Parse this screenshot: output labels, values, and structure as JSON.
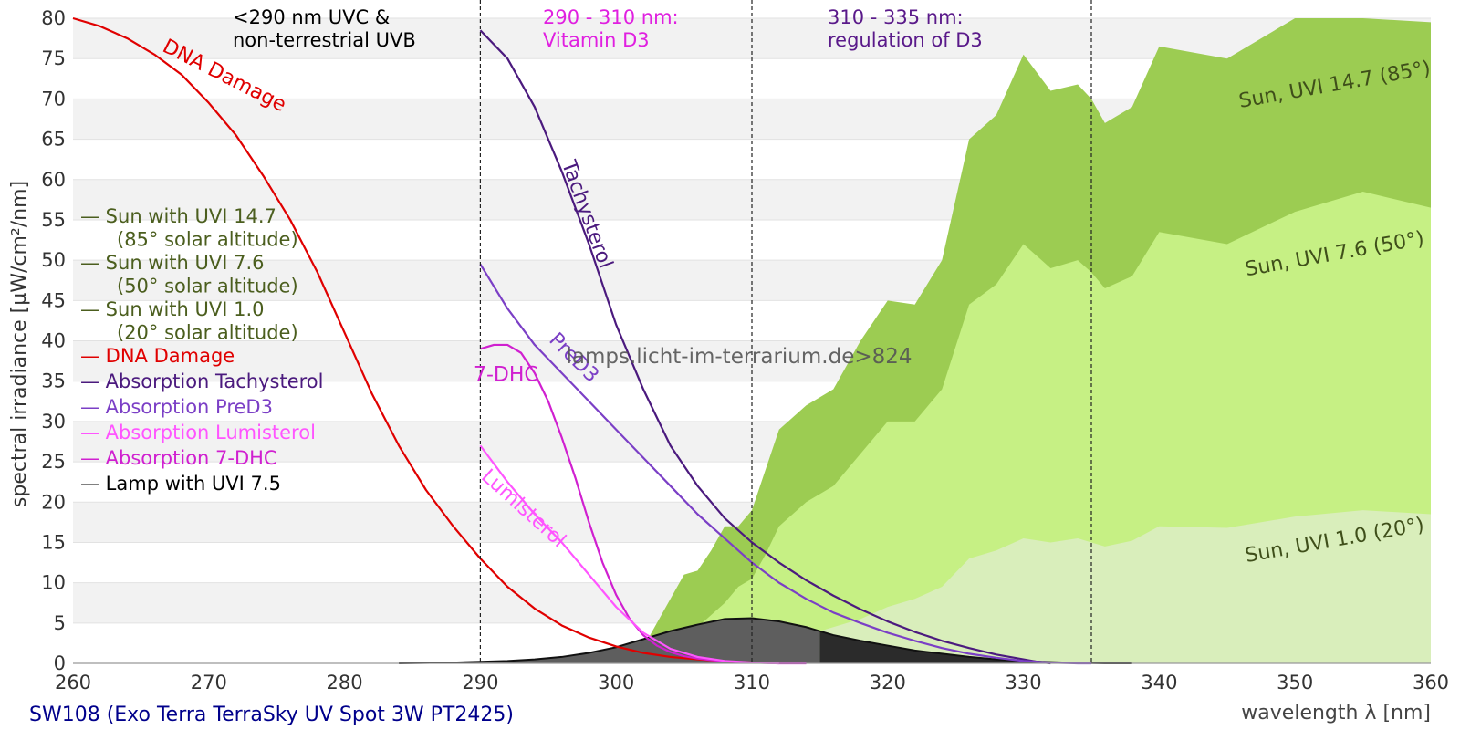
{
  "chart_data": {
    "type": "area",
    "xlabel": "wavelength λ [nm]",
    "ylabel": "spectral irradiance [µW/cm²/nm]",
    "xlim": [
      260,
      360
    ],
    "ylim": [
      0,
      80
    ],
    "xticks": [
      260,
      270,
      280,
      290,
      300,
      310,
      320,
      330,
      340,
      350,
      360
    ],
    "yticks": [
      0,
      5,
      10,
      15,
      20,
      25,
      30,
      35,
      40,
      45,
      50,
      55,
      60,
      65,
      70,
      75,
      80
    ],
    "grid": "horizontal bands",
    "footer": "SW108 (Exo Terra TerraSky UV Spot 3W PT2425)",
    "watermark": "lamps.licht-im-terrarium.de>824",
    "region_lines": [
      290,
      310,
      335
    ],
    "region_labels": [
      {
        "lines": [
          "<290 nm UVC &",
          "non-terrestrial UVB"
        ],
        "color": "#000000"
      },
      {
        "lines": [
          "290 - 310 nm:",
          "Vitamin D3"
        ],
        "color": "#e020e0"
      },
      {
        "lines": [
          "310 - 335 nm:",
          "regulation of D3"
        ],
        "color": "#5a1a8a"
      }
    ],
    "legend": [
      {
        "lines": [
          "— Sun with UVI 14.7",
          "(85° solar altitude)"
        ],
        "color": "#4b5e1e"
      },
      {
        "lines": [
          "— Sun with UVI 7.6",
          "(50° solar altitude)"
        ],
        "color": "#4b5e1e"
      },
      {
        "lines": [
          "— Sun with UVI 1.0",
          "(20° solar altitude)"
        ],
        "color": "#4b5e1e"
      },
      {
        "lines": [
          "— DNA Damage"
        ],
        "color": "#e00000"
      },
      {
        "lines": [
          "— Absorption Tachysterol"
        ],
        "color": "#4b1a7e"
      },
      {
        "lines": [
          "— Absorption PreD3"
        ],
        "color": "#7b3fc6"
      },
      {
        "lines": [
          "— Absorption Lumisterol"
        ],
        "color": "#ff55ff"
      },
      {
        "lines": [
          "— Absorption 7-DHC"
        ],
        "color": "#d020d0"
      },
      {
        "lines": [
          "— Lamp with UVI 7.5"
        ],
        "color": "#000000"
      }
    ],
    "sun_areas": [
      {
        "name": "Sun, UVI 14.7 (85°)",
        "color": "#9ccc52",
        "text_color": "#3f4f1a",
        "label_x": 353,
        "label_y": 71,
        "x": [
          302,
          303,
          304,
          305,
          306,
          307,
          308,
          309,
          310,
          311,
          312,
          314,
          316,
          318,
          320,
          322,
          324,
          326,
          328,
          330,
          332,
          334,
          335,
          336,
          338,
          340,
          345,
          350,
          355,
          360
        ],
        "y": [
          2,
          5,
          8,
          11,
          11.5,
          14,
          17,
          17,
          19,
          24,
          29,
          32,
          34,
          40,
          45,
          44.5,
          50,
          65,
          68,
          75.5,
          71,
          71.8,
          70,
          67,
          69,
          76.5,
          75,
          80,
          83,
          79.5
        ]
      },
      {
        "name": "Sun, UVI 7.6 (50°)",
        "color": "#c6f084",
        "text_color": "#3f4f1a",
        "label_x": 353,
        "label_y": 50,
        "x": [
          302,
          303,
          304,
          305,
          306,
          307,
          308,
          309,
          310,
          311,
          312,
          314,
          316,
          318,
          320,
          322,
          324,
          326,
          328,
          330,
          332,
          334,
          335,
          336,
          338,
          340,
          345,
          350,
          355,
          360
        ],
        "y": [
          0.5,
          1.5,
          3,
          4,
          4.5,
          6,
          7.5,
          9.5,
          10.5,
          13.5,
          17,
          20,
          22,
          26,
          30,
          30,
          34,
          44.5,
          47,
          52,
          49,
          50,
          48.5,
          46.5,
          48,
          53.5,
          52,
          56,
          58.5,
          56.5
        ]
      },
      {
        "name": "Sun, UVI 1.0 (20°)",
        "color": "#d9eebb",
        "text_color": "#3f4f1a",
        "label_x": 353,
        "label_y": 14.5,
        "x": [
          302,
          304,
          306,
          308,
          310,
          312,
          314,
          316,
          318,
          320,
          322,
          324,
          326,
          328,
          330,
          332,
          334,
          336,
          338,
          340,
          345,
          350,
          355,
          360
        ],
        "y": [
          0,
          0.3,
          0.6,
          1,
          1.5,
          2.5,
          3.5,
          4.5,
          5.5,
          7,
          8,
          9.5,
          13,
          14,
          15.5,
          15,
          15.5,
          14.5,
          15.2,
          17,
          16.8,
          18.2,
          19,
          18.5
        ]
      }
    ],
    "lamp": {
      "name": "Lamp with UVI 7.5",
      "split_x": 315,
      "x": [
        284,
        288,
        290,
        292,
        294,
        296,
        298,
        300,
        302,
        304,
        306,
        308,
        310,
        312,
        314,
        315,
        316,
        318,
        320,
        322,
        324,
        326,
        328,
        330,
        332,
        334,
        336,
        338
      ],
      "y": [
        0,
        0.1,
        0.2,
        0.3,
        0.5,
        0.8,
        1.3,
        2,
        3,
        4,
        4.8,
        5.5,
        5.6,
        5.2,
        4.5,
        4,
        3.5,
        2.8,
        2.2,
        1.6,
        1.2,
        0.8,
        0.5,
        0.3,
        0.15,
        0.05,
        0,
        0
      ]
    },
    "curves": [
      {
        "name": "DNA Damage",
        "color": "#e00000",
        "label_x": 266.5,
        "label_y": 76,
        "label_angle": 27,
        "x": [
          260,
          262,
          264,
          266,
          268,
          270,
          272,
          274,
          276,
          278,
          280,
          282,
          284,
          286,
          288,
          290,
          292,
          294,
          296,
          298,
          300,
          302,
          304,
          306,
          308,
          310
        ],
        "y": [
          80,
          79,
          77.5,
          75.5,
          73,
          69.5,
          65.5,
          60.5,
          55,
          48.5,
          41,
          33.5,
          27,
          21.5,
          17,
          13,
          9.5,
          6.8,
          4.7,
          3.2,
          2.1,
          1.3,
          0.8,
          0.5,
          0.25,
          0.1
        ]
      },
      {
        "name": "Tachysterol",
        "color": "#4b1a7e",
        "label_x": 296,
        "label_y": 62,
        "label_angle": 70,
        "x": [
          290,
          292,
          294,
          296,
          298,
          300,
          302,
          304,
          306,
          308,
          310,
          312,
          314,
          316,
          318,
          320,
          322,
          324,
          326,
          328,
          330,
          331,
          332
        ],
        "y": [
          78.5,
          75,
          69,
          61,
          52,
          42,
          34,
          27,
          22,
          18,
          15,
          12.5,
          10.3,
          8.4,
          6.7,
          5.2,
          3.9,
          2.8,
          1.9,
          1.1,
          0.5,
          0.2,
          0
        ]
      },
      {
        "name": "PreD3",
        "color": "#7b3fc6",
        "label_x": 295,
        "label_y": 40,
        "label_angle": 45,
        "x": [
          290,
          292,
          294,
          296,
          298,
          300,
          302,
          304,
          306,
          308,
          310,
          312,
          314,
          316,
          318,
          320,
          322,
          324,
          326,
          328,
          330,
          332,
          334,
          335
        ],
        "y": [
          49.5,
          44,
          39.5,
          36,
          32.5,
          29,
          25.5,
          22,
          18.5,
          15.5,
          12.5,
          10,
          8,
          6.3,
          5,
          3.8,
          2.8,
          1.9,
          1.2,
          0.7,
          0.3,
          0.1,
          0,
          0
        ]
      },
      {
        "name": "7-DHC",
        "color": "#d020d0",
        "label_x": 289.5,
        "label_y": 35,
        "label_angle": 0,
        "x": [
          290,
          291,
          292,
          293,
          294,
          295,
          296,
          297,
          298,
          299,
          300,
          301,
          302,
          303,
          304,
          305,
          306,
          307,
          308,
          309,
          310,
          311,
          312,
          313,
          314
        ],
        "y": [
          39,
          39.5,
          39.5,
          38.5,
          36,
          32.5,
          28,
          23,
          17.5,
          12.5,
          8.5,
          5.5,
          3.5,
          2.2,
          1.4,
          0.9,
          0.6,
          0.4,
          0.25,
          0.15,
          0.1,
          0.05,
          0,
          0,
          0
        ]
      },
      {
        "name": "Lumisterol",
        "color": "#ff55ff",
        "label_x": 290,
        "label_y": 23,
        "label_angle": 42,
        "x": [
          290,
          292,
          294,
          296,
          298,
          300,
          302,
          304,
          306,
          308,
          310,
          312
        ],
        "y": [
          27,
          22.5,
          18.5,
          15,
          11,
          7,
          3.8,
          1.8,
          0.8,
          0.3,
          0.1,
          0
        ]
      }
    ]
  }
}
